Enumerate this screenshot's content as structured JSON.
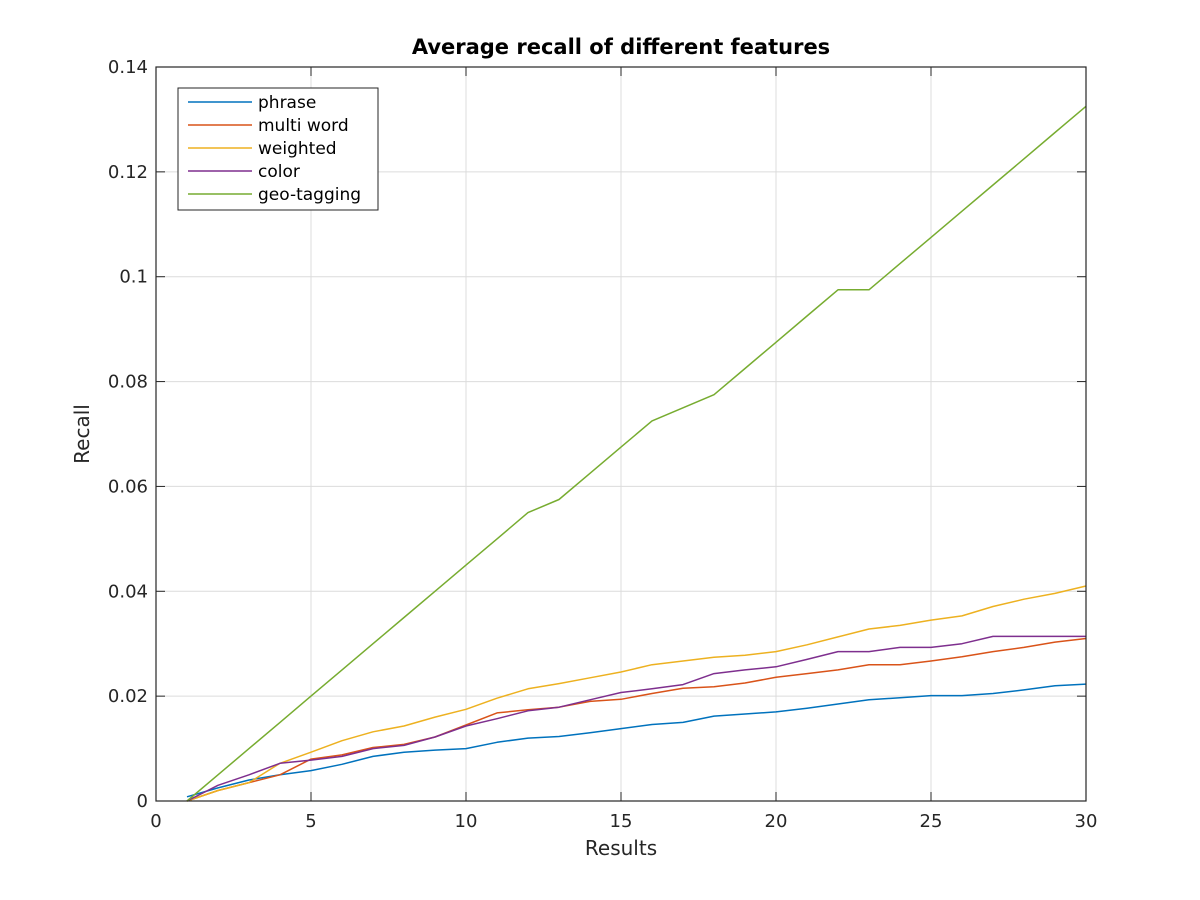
{
  "chart_data": {
    "type": "line",
    "title": "Average recall of different features",
    "xlabel": "Results",
    "ylabel": "Recall",
    "xlim": [
      0,
      30
    ],
    "ylim": [
      0,
      0.14
    ],
    "xticks": [
      0,
      5,
      10,
      15,
      20,
      25,
      30
    ],
    "yticks": [
      0,
      0.02,
      0.04,
      0.06,
      0.08,
      0.1,
      0.12,
      0.14
    ],
    "ytick_labels": [
      "0",
      "0.02",
      "0.04",
      "0.06",
      "0.08",
      "0.1",
      "0.12",
      "0.14"
    ],
    "grid": true,
    "legend_position": "top-left",
    "x": [
      1,
      2,
      3,
      4,
      5,
      6,
      7,
      8,
      9,
      10,
      11,
      12,
      13,
      14,
      15,
      16,
      17,
      18,
      19,
      20,
      21,
      22,
      23,
      24,
      25,
      26,
      27,
      28,
      29,
      30
    ],
    "series": [
      {
        "name": "phrase",
        "color": "#0072BD",
        "values": [
          0.0008,
          0.0025,
          0.004,
          0.005,
          0.0058,
          0.007,
          0.0085,
          0.0093,
          0.0097,
          0.01,
          0.0112,
          0.012,
          0.0123,
          0.013,
          0.0138,
          0.0146,
          0.015,
          0.0162,
          0.0166,
          0.017,
          0.0177,
          0.0185,
          0.0193,
          0.0197,
          0.0201,
          0.0201,
          0.0205,
          0.0212,
          0.022,
          0.0223
        ]
      },
      {
        "name": "multi word",
        "color": "#D95319",
        "values": [
          0.0,
          0.002,
          0.0035,
          0.005,
          0.008,
          0.0088,
          0.0102,
          0.0108,
          0.0122,
          0.0145,
          0.0168,
          0.0174,
          0.0179,
          0.019,
          0.0194,
          0.0205,
          0.0215,
          0.0218,
          0.0225,
          0.0236,
          0.0243,
          0.025,
          0.026,
          0.026,
          0.0267,
          0.0275,
          0.0285,
          0.0293,
          0.0303,
          0.031
        ]
      },
      {
        "name": "weighted",
        "color": "#EDB120",
        "values": [
          0.0,
          0.002,
          0.0035,
          0.0072,
          0.0093,
          0.0115,
          0.0132,
          0.0143,
          0.016,
          0.0175,
          0.0196,
          0.0214,
          0.0224,
          0.0235,
          0.0246,
          0.026,
          0.0267,
          0.0274,
          0.0278,
          0.0285,
          0.0298,
          0.0313,
          0.0328,
          0.0335,
          0.0345,
          0.0353,
          0.0371,
          0.0385,
          0.0396,
          0.041
        ]
      },
      {
        "name": "color",
        "color": "#7E2F8E",
        "values": [
          0.0,
          0.003,
          0.005,
          0.0072,
          0.0078,
          0.0085,
          0.01,
          0.0106,
          0.0122,
          0.0143,
          0.0157,
          0.0172,
          0.0179,
          0.0193,
          0.0207,
          0.0214,
          0.0222,
          0.0243,
          0.025,
          0.0256,
          0.027,
          0.0285,
          0.0285,
          0.0293,
          0.0293,
          0.03,
          0.0314,
          0.0314,
          0.0314,
          0.0314
        ]
      },
      {
        "name": "geo-tagging",
        "color": "#77AC30",
        "values": [
          0.0,
          0.005,
          0.01,
          0.015,
          0.02,
          0.025,
          0.03,
          0.035,
          0.04,
          0.045,
          0.05,
          0.055,
          0.0575,
          0.0625,
          0.0675,
          0.0725,
          0.075,
          0.0775,
          0.0825,
          0.0875,
          0.0925,
          0.0975,
          0.0975,
          0.1025,
          0.1075,
          0.1125,
          0.1175,
          0.1225,
          0.1275,
          0.1325
        ]
      }
    ]
  }
}
